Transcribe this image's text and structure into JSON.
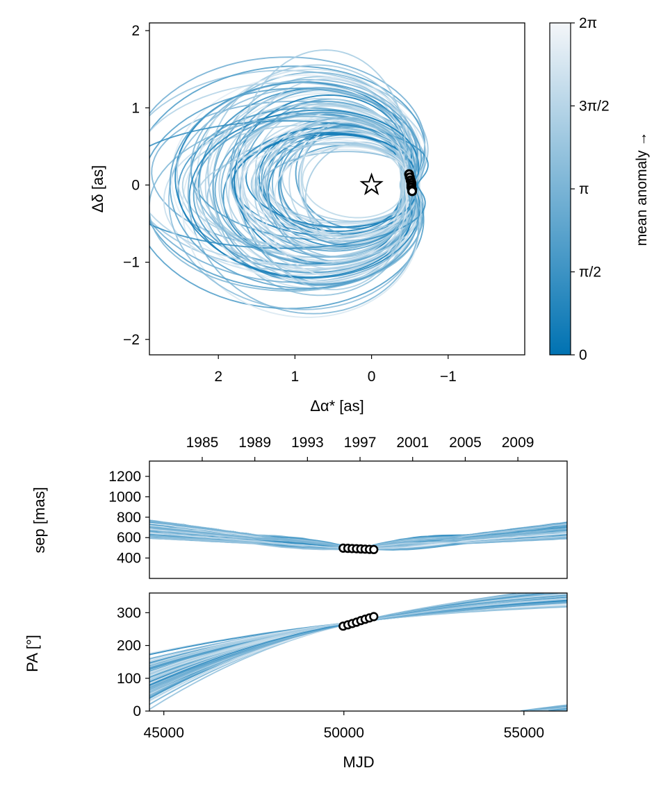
{
  "colors": {
    "colormap_low": "#0072b2",
    "colormap_high": "#f4f6f9",
    "marker_fill": "#ffffff",
    "marker_edge": "#000000",
    "frame": "#000000"
  },
  "chart_data": [
    {
      "id": "sky_plane",
      "type": "line",
      "xlabel": "Δα* [as]",
      "ylabel": "Δδ [as]",
      "xlim": [
        2.9,
        -2.0
      ],
      "ylim": [
        -2.2,
        2.1
      ],
      "x_reversed": true,
      "xticks": [
        2,
        1,
        0,
        -1
      ],
      "xtick_labels": [
        "2",
        "1",
        "0",
        "−1"
      ],
      "yticks": [
        -2,
        -1,
        0,
        1,
        2
      ],
      "ytick_labels": [
        "−2",
        "−1",
        "0",
        "1",
        "2"
      ],
      "grid": false,
      "host_star": {
        "x": 0.0,
        "y": 0.0,
        "marker": "star"
      },
      "observations": [
        {
          "x": -0.49,
          "y": 0.14
        },
        {
          "x": -0.5,
          "y": 0.1
        },
        {
          "x": -0.51,
          "y": 0.06
        },
        {
          "x": -0.52,
          "y": 0.03
        },
        {
          "x": -0.52,
          "y": 0.0
        },
        {
          "x": -0.52,
          "y": -0.03
        },
        {
          "x": -0.53,
          "y": -0.06
        },
        {
          "x": -0.53,
          "y": -0.08
        }
      ],
      "orbit_samples": 90,
      "orbit_color_by": "mean anomaly"
    },
    {
      "id": "colorbar",
      "type": "heatmap",
      "label": "mean anomaly →",
      "range": [
        0,
        6.2832
      ],
      "ticks": [
        0,
        1.5708,
        3.1416,
        4.7124,
        6.2832
      ],
      "tick_labels": [
        "0",
        "π/2",
        "π",
        "3π/2",
        "2π"
      ]
    },
    {
      "id": "separation",
      "type": "line",
      "ylabel": "sep [mas]",
      "x_unit": "MJD",
      "xlim": [
        44600,
        56200
      ],
      "ylim": [
        200,
        1350
      ],
      "yticks": [
        400,
        600,
        800,
        1000,
        1200
      ],
      "ytick_labels": [
        "400",
        "600",
        "800",
        "1000",
        "1200"
      ],
      "top_axis_ticks_mjd": [
        46066,
        47527,
        48988,
        50449,
        51910,
        53371,
        54832
      ],
      "top_axis_tick_labels": [
        "1985",
        "1989",
        "1993",
        "1997",
        "2001",
        "2005",
        "2009"
      ],
      "grid": false,
      "observations": [
        {
          "x": 49980,
          "y": 497
        },
        {
          "x": 50110,
          "y": 495
        },
        {
          "x": 50230,
          "y": 493
        },
        {
          "x": 50350,
          "y": 491
        },
        {
          "x": 50470,
          "y": 489
        },
        {
          "x": 50590,
          "y": 487
        },
        {
          "x": 50710,
          "y": 485
        },
        {
          "x": 50830,
          "y": 483
        }
      ]
    },
    {
      "id": "position_angle",
      "type": "line",
      "xlabel": "MJD",
      "ylabel": "PA [°]",
      "xlim": [
        44600,
        56200
      ],
      "ylim": [
        0,
        360
      ],
      "xticks": [
        45000,
        50000,
        55000
      ],
      "xtick_labels": [
        "45000",
        "50000",
        "55000"
      ],
      "yticks": [
        0,
        100,
        200,
        300
      ],
      "ytick_labels": [
        "0",
        "100",
        "200",
        "300"
      ],
      "grid": false,
      "observations": [
        {
          "x": 49980,
          "y": 259
        },
        {
          "x": 50110,
          "y": 263
        },
        {
          "x": 50230,
          "y": 267
        },
        {
          "x": 50350,
          "y": 271
        },
        {
          "x": 50470,
          "y": 276
        },
        {
          "x": 50590,
          "y": 280
        },
        {
          "x": 50710,
          "y": 284
        },
        {
          "x": 50830,
          "y": 288
        }
      ]
    }
  ]
}
